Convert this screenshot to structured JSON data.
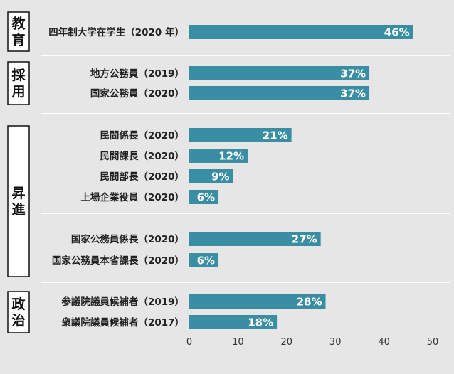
{
  "colors": {
    "bar": "#3a8ea3",
    "background": "#e6e6e6"
  },
  "chart_data": {
    "type": "bar",
    "orientation": "horizontal",
    "value_suffix": "%",
    "xlim": [
      0,
      50
    ],
    "xticks": [
      0,
      10,
      20,
      30,
      40,
      50
    ],
    "grid": false,
    "groups": [
      {
        "label": "教育",
        "items": [
          {
            "category": "四年制大学在学生（2020 年）",
            "value": 46
          }
        ]
      },
      {
        "label": "採用",
        "items": [
          {
            "category": "地方公務員（2019）",
            "value": 37
          },
          {
            "category": "国家公務員（2020）",
            "value": 37
          }
        ]
      },
      {
        "label": "昇進",
        "items": [
          {
            "category": "民間係長（2020）",
            "value": 21
          },
          {
            "category": "民間課長（2020）",
            "value": 12
          },
          {
            "category": "民間部長（2020）",
            "value": 9
          },
          {
            "category": "上場企業役員（2020）",
            "value": 6
          },
          {
            "category": "国家公務員係長（2020）",
            "value": 27
          },
          {
            "category": "国家公務員本省課長（2020）",
            "value": 6
          }
        ]
      },
      {
        "label": "政治",
        "items": [
          {
            "category": "参議院議員候補者（2019）",
            "value": 28
          },
          {
            "category": "衆議院議員候補者（2017）",
            "value": 18
          }
        ]
      }
    ]
  }
}
